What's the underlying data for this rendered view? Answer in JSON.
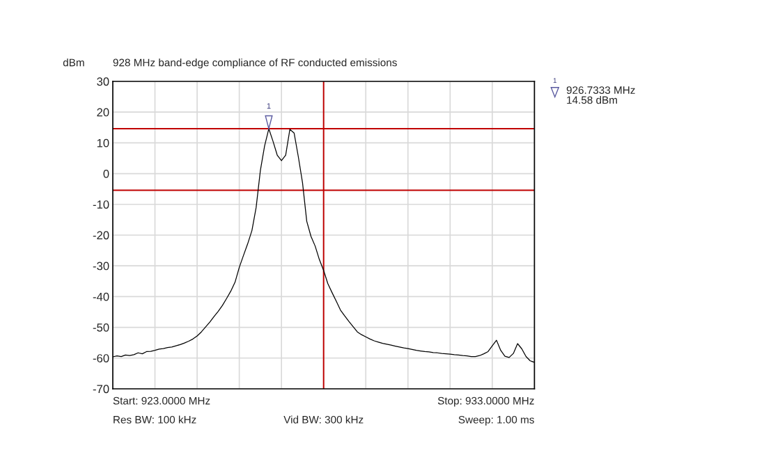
{
  "chart_data": {
    "type": "line",
    "title": "928 MHz band-edge compliance of RF conducted emissions",
    "ylabel": "dBm",
    "categories": [
      null,
      null,
      null,
      null,
      null,
      null,
      null,
      null,
      null,
      null,
      null,
      null,
      null,
      null,
      null,
      null,
      null,
      null,
      null,
      null,
      null,
      null,
      null,
      null,
      null,
      null,
      null,
      null,
      null,
      null,
      null,
      null,
      null,
      null,
      null,
      null,
      null,
      null,
      null,
      null,
      null,
      null,
      null,
      null,
      null,
      null,
      null,
      null,
      null,
      null,
      null,
      null,
      null,
      null,
      null,
      null,
      null,
      null,
      null,
      null,
      null,
      null,
      null,
      null,
      null,
      null,
      null,
      null,
      null,
      null,
      null,
      null,
      null,
      null,
      null,
      null,
      null,
      null,
      null,
      null,
      null,
      null,
      null,
      null,
      null,
      null,
      null,
      null,
      null,
      null,
      null,
      null,
      null,
      null,
      null,
      null,
      null,
      null,
      null,
      null,
      null
    ],
    "ylim": [
      -70,
      30
    ],
    "yticks": [
      -70,
      -60,
      -50,
      -40,
      -30,
      -20,
      -10,
      0,
      10,
      20,
      30
    ],
    "tick_labels": "y",
    "grid": true,
    "marker": "none",
    "line_style": "solid",
    "series": [
      {
        "color": "#000000",
        "values": [
          -59.6,
          -59.3,
          -59.5,
          -59.0,
          -59.2,
          -58.9,
          -58.3,
          -58.6,
          -57.9,
          -57.8,
          -57.5,
          -57.1,
          -56.9,
          -56.6,
          -56.4,
          -56.0,
          -55.6,
          -55.1,
          -54.5,
          -53.8,
          -52.8,
          -51.5,
          -49.9,
          -48.3,
          -46.5,
          -44.8,
          -42.9,
          -40.6,
          -38.2,
          -35.3,
          -30.5,
          -26.6,
          -22.8,
          -18.5,
          -11.0,
          1.0,
          9.0,
          14.6,
          10.5,
          6.0,
          4.2,
          6.0,
          14.4,
          13.2,
          5.5,
          -3.0,
          -15.5,
          -20.4,
          -23.6,
          -28.0,
          -31.5,
          -35.8,
          -38.7,
          -41.5,
          -44.4,
          -46.3,
          -48.1,
          -49.8,
          -51.5,
          -52.4,
          -53.1,
          -53.8,
          -54.4,
          -54.8,
          -55.2,
          -55.5,
          -55.8,
          -56.1,
          -56.4,
          -56.7,
          -56.9,
          -57.2,
          -57.5,
          -57.7,
          -57.9,
          -58.0,
          -58.2,
          -58.3,
          -58.5,
          -58.6,
          -58.7,
          -58.9,
          -59.0,
          -59.2,
          -59.3,
          -59.5,
          -59.5,
          -59.2,
          -58.6,
          -57.9,
          -56.0,
          -54.2,
          -57.5,
          -59.4,
          -59.8,
          -58.5,
          -55.3,
          -57.0,
          -59.5,
          -60.9,
          -61.4
        ]
      }
    ],
    "ref_lines": [
      {
        "axis": "y",
        "value": 14.6,
        "color": "#c00000"
      },
      {
        "axis": "y",
        "value": -5.4,
        "color": "#c00000"
      }
    ],
    "annotations": [
      {
        "text": "1",
        "y": 14.6
      },
      "1",
      "926.7333 MHz\n14.58 dBm",
      "Start: 923.0000 MHz",
      "Stop: 933.0000 MHz",
      "Res BW: 100 kHz",
      "Vid BW: 300 kHz",
      "Sweep: 1.00 ms"
    ]
  }
}
